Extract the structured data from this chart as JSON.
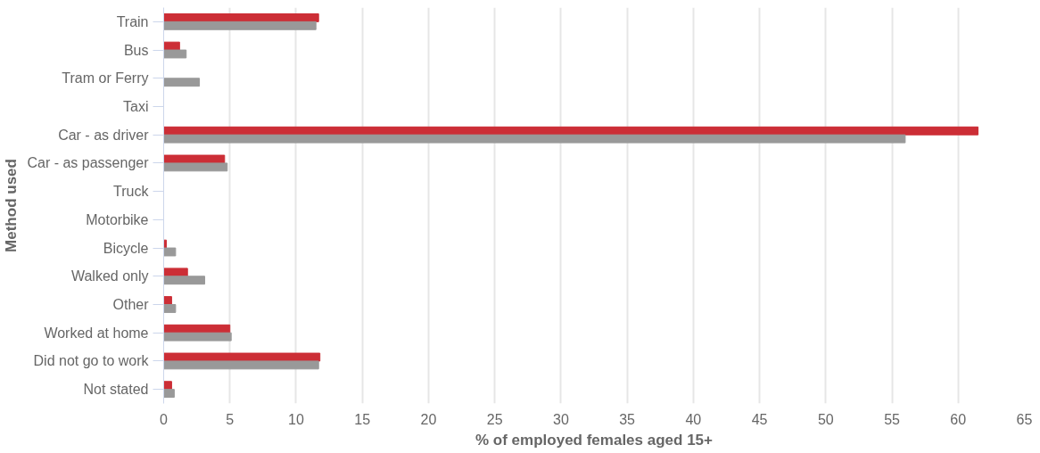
{
  "chart_data": {
    "type": "bar",
    "orientation": "horizontal",
    "ylabel": "Method used",
    "xlabel": "% of employed females aged 15+",
    "categories": [
      "Train",
      "Bus",
      "Tram or Ferry",
      "Taxi",
      "Car - as driver",
      "Car - as passenger",
      "Truck",
      "Motorbike",
      "Bicycle",
      "Walked only",
      "Other",
      "Worked at home",
      "Did not go to work",
      "Not stated"
    ],
    "series": [
      {
        "color": "#cc2e36",
        "values": [
          11.7,
          1.2,
          0,
          0,
          61.5,
          4.6,
          0,
          0,
          0.2,
          1.8,
          0.6,
          5.0,
          11.8,
          0.6
        ]
      },
      {
        "color": "#999999",
        "values": [
          11.5,
          1.7,
          2.7,
          0,
          56.0,
          4.8,
          0,
          0,
          0.9,
          3.1,
          0.9,
          5.1,
          11.7,
          0.8
        ]
      }
    ],
    "xlim": [
      0,
      65
    ],
    "xticks": [
      0,
      5,
      10,
      15,
      20,
      25,
      30,
      35,
      40,
      45,
      50,
      55,
      60,
      65
    ],
    "grid": "x"
  }
}
